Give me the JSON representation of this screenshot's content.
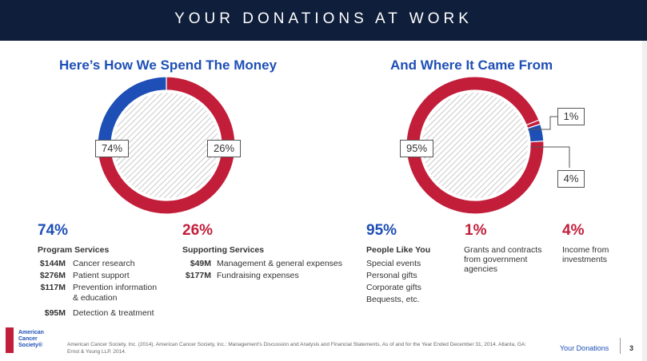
{
  "header": {
    "title": "YOUR DONATIONS AT WORK"
  },
  "colors": {
    "blue": "#1e4fb6",
    "red": "#c21e3a",
    "navy": "#0f1e3a"
  },
  "chart_data": [
    {
      "type": "pie",
      "title": "Here’s How We Spend The Money",
      "categories": [
        "Program Services",
        "Supporting Services"
      ],
      "values": [
        74,
        26
      ],
      "labels": [
        "74%",
        "26%"
      ]
    },
    {
      "type": "pie",
      "title": "And Where It Came From",
      "categories": [
        "People Like You",
        "Grants and contracts from government agencies",
        "Income from investments"
      ],
      "values": [
        95,
        1,
        4
      ],
      "labels": [
        "95%",
        "1%",
        "4%"
      ]
    }
  ],
  "spend": {
    "program": {
      "pct": "74%",
      "title": "Program Services",
      "items": [
        {
          "amount": "$144M",
          "label": "Cancer research"
        },
        {
          "amount": "$276M",
          "label": "Patient support"
        },
        {
          "amount": "$117M",
          "label": "Prevention information",
          "label2": "& education"
        },
        {
          "amount": "$95M",
          "label": "Detection & treatment"
        }
      ]
    },
    "supporting": {
      "pct": "26%",
      "title": "Supporting Services",
      "items": [
        {
          "amount": "$49M",
          "label": "Management & general expenses"
        },
        {
          "amount": "$177M",
          "label": "Fundraising expenses"
        }
      ]
    }
  },
  "sources": {
    "people": {
      "pct": "95%",
      "title": "People Like You",
      "items": [
        "Special events",
        "Personal gifts",
        "Corporate gifts",
        "Bequests, etc."
      ]
    },
    "grants": {
      "pct": "1%",
      "lines": [
        "Grants and contracts",
        "from government",
        "agencies"
      ]
    },
    "investments": {
      "pct": "4%",
      "lines": [
        "Income from",
        "investments"
      ]
    }
  },
  "footer": {
    "footnote_line1": "American Cancer Society, Inc. (2014). American Cancer Society, Inc.: Management's Discussion and Analysis and Financial Statements, As of and for the Year Ended December 31, 2014. Atlanta, GA:",
    "footnote_line2": "Ernst & Young LLP. 2014.",
    "logo_line1": "American",
    "logo_line2": "Cancer",
    "logo_line3": "Society®",
    "label": "Your Donations",
    "page": "3"
  }
}
